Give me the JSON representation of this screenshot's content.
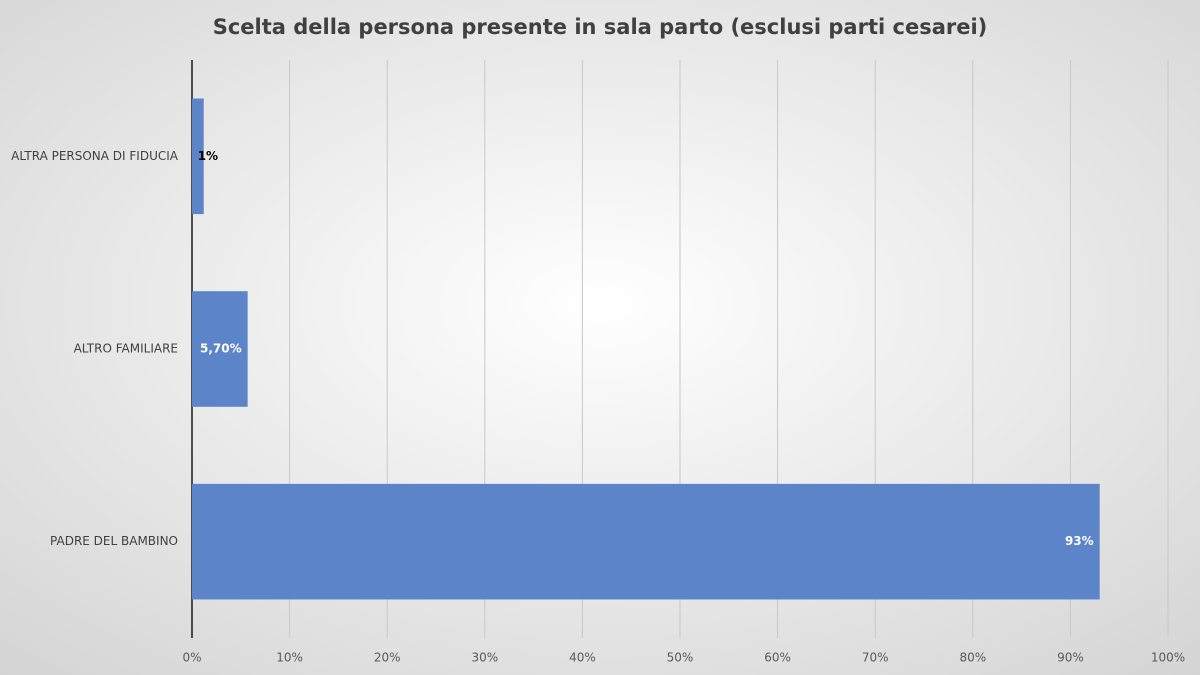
{
  "chart_data": {
    "type": "bar",
    "orientation": "horizontal",
    "title": "Scelta della persona presente in sala parto (esclusi parti cesarei)",
    "categories": [
      "ALTRA PERSONA DI FIDUCIA",
      "ALTRO FAMILIARE",
      "PADRE DEL BAMBINO"
    ],
    "values": [
      1.2,
      5.7,
      93
    ],
    "value_labels": [
      "1%",
      "5,70%",
      "93%"
    ],
    "color": "#5b84c9",
    "xlim": [
      0,
      100
    ],
    "xticks": [
      {
        "value": 0,
        "label": "0%"
      },
      {
        "value": 10,
        "label": "10%"
      },
      {
        "value": 20,
        "label": "20%"
      },
      {
        "value": 30,
        "label": "30%"
      },
      {
        "value": 40,
        "label": "40%"
      },
      {
        "value": 50,
        "label": "50%"
      },
      {
        "value": 60,
        "label": "60%"
      },
      {
        "value": 70,
        "label": "70%"
      },
      {
        "value": 80,
        "label": "80%"
      },
      {
        "value": 90,
        "label": "90%"
      },
      {
        "value": 100,
        "label": "100%"
      }
    ],
    "grid": true
  }
}
